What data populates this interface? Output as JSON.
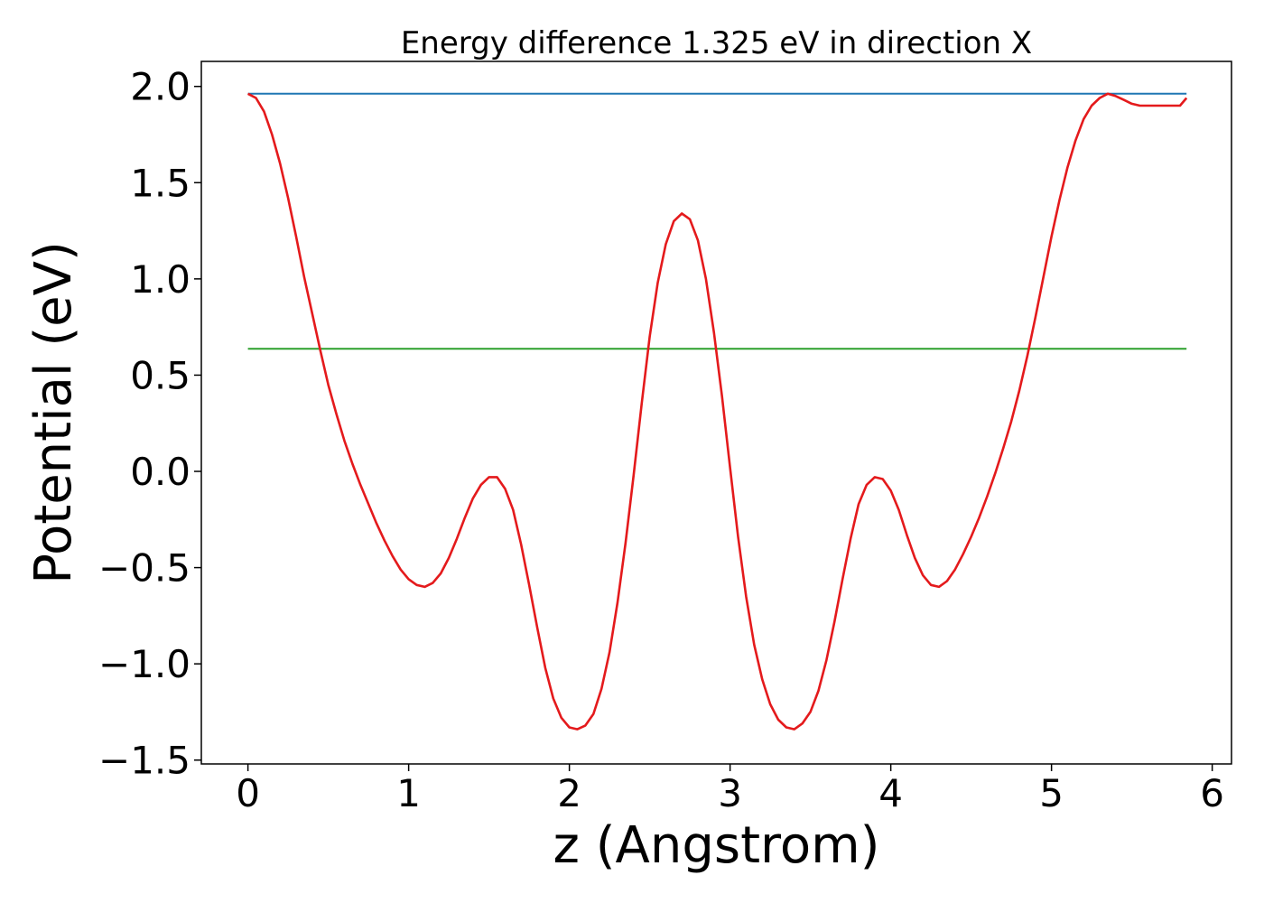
{
  "chart_data": {
    "type": "line",
    "title": "Energy difference 1.325 eV in direction X",
    "xlabel": "z (Angstrom)",
    "ylabel": "Potential (eV)",
    "xlim": [
      -0.29,
      6.12
    ],
    "ylim": [
      -1.52,
      2.13
    ],
    "xticks": [
      0,
      1,
      2,
      3,
      4,
      5,
      6
    ],
    "yticks": [
      2.0,
      1.5,
      1.0,
      0.5,
      0.0,
      -0.5,
      -1.0,
      -1.5
    ],
    "xtick_labels": [
      "0",
      "1",
      "2",
      "3",
      "4",
      "5",
      "6"
    ],
    "ytick_labels": [
      "2.0",
      "1.5",
      "1.0",
      "0.5",
      "0.0",
      "−0.5",
      "−1.0",
      "−1.5"
    ],
    "grid": false,
    "legend": "none",
    "series": [
      {
        "color": "#1f77b4",
        "x": [
          0,
          5.84
        ],
        "y": [
          1.962,
          1.962
        ]
      },
      {
        "color": "#2ca02c",
        "x": [
          0,
          5.84
        ],
        "y": [
          0.637,
          0.637
        ]
      },
      {
        "color": "#e41a1c",
        "x": [
          0.0,
          0.05,
          0.1,
          0.15,
          0.2,
          0.25,
          0.3,
          0.35,
          0.4,
          0.45,
          0.5,
          0.55,
          0.6,
          0.65,
          0.7,
          0.75,
          0.8,
          0.85,
          0.9,
          0.95,
          1.0,
          1.05,
          1.1,
          1.15,
          1.2,
          1.25,
          1.3,
          1.35,
          1.4,
          1.45,
          1.5,
          1.55,
          1.6,
          1.65,
          1.7,
          1.75,
          1.8,
          1.85,
          1.9,
          1.95,
          2.0,
          2.05,
          2.1,
          2.15,
          2.2,
          2.25,
          2.3,
          2.35,
          2.4,
          2.45,
          2.5,
          2.55,
          2.6,
          2.65,
          2.7,
          2.75,
          2.8,
          2.85,
          2.9,
          2.95,
          3.0,
          3.05,
          3.1,
          3.15,
          3.2,
          3.25,
          3.3,
          3.35,
          3.4,
          3.45,
          3.5,
          3.55,
          3.6,
          3.65,
          3.7,
          3.75,
          3.8,
          3.85,
          3.9,
          3.95,
          4.0,
          4.05,
          4.1,
          4.15,
          4.2,
          4.25,
          4.3,
          4.35,
          4.4,
          4.45,
          4.5,
          4.55,
          4.6,
          4.65,
          4.7,
          4.75,
          4.8,
          4.85,
          4.9,
          4.95,
          5.0,
          5.05,
          5.1,
          5.15,
          5.2,
          5.25,
          5.3,
          5.35,
          5.4,
          5.45,
          5.5,
          5.55,
          5.6,
          5.65,
          5.7,
          5.75,
          5.8,
          5.84
        ],
        "y": [
          1.962,
          1.94,
          1.87,
          1.75,
          1.6,
          1.42,
          1.22,
          1.01,
          0.82,
          0.63,
          0.45,
          0.3,
          0.16,
          0.04,
          -0.07,
          -0.17,
          -0.27,
          -0.36,
          -0.44,
          -0.51,
          -0.56,
          -0.59,
          -0.6,
          -0.58,
          -0.53,
          -0.45,
          -0.35,
          -0.24,
          -0.14,
          -0.07,
          -0.03,
          -0.03,
          -0.09,
          -0.2,
          -0.38,
          -0.59,
          -0.81,
          -1.02,
          -1.18,
          -1.28,
          -1.33,
          -1.34,
          -1.32,
          -1.26,
          -1.13,
          -0.94,
          -0.68,
          -0.37,
          -0.02,
          0.35,
          0.7,
          0.98,
          1.18,
          1.3,
          1.34,
          1.31,
          1.2,
          1.0,
          0.72,
          0.39,
          0.02,
          -0.34,
          -0.65,
          -0.9,
          -1.08,
          -1.21,
          -1.29,
          -1.33,
          -1.34,
          -1.31,
          -1.25,
          -1.14,
          -0.98,
          -0.78,
          -0.56,
          -0.35,
          -0.17,
          -0.07,
          -0.03,
          -0.04,
          -0.1,
          -0.2,
          -0.33,
          -0.45,
          -0.54,
          -0.59,
          -0.6,
          -0.57,
          -0.51,
          -0.43,
          -0.34,
          -0.24,
          -0.13,
          -0.01,
          0.12,
          0.26,
          0.42,
          0.6,
          0.8,
          1.01,
          1.22,
          1.41,
          1.58,
          1.72,
          1.83,
          1.9,
          1.94,
          1.962,
          1.95,
          1.93,
          1.91,
          1.9,
          1.9,
          1.9,
          1.9,
          1.9,
          1.9,
          1.94
        ]
      }
    ]
  }
}
